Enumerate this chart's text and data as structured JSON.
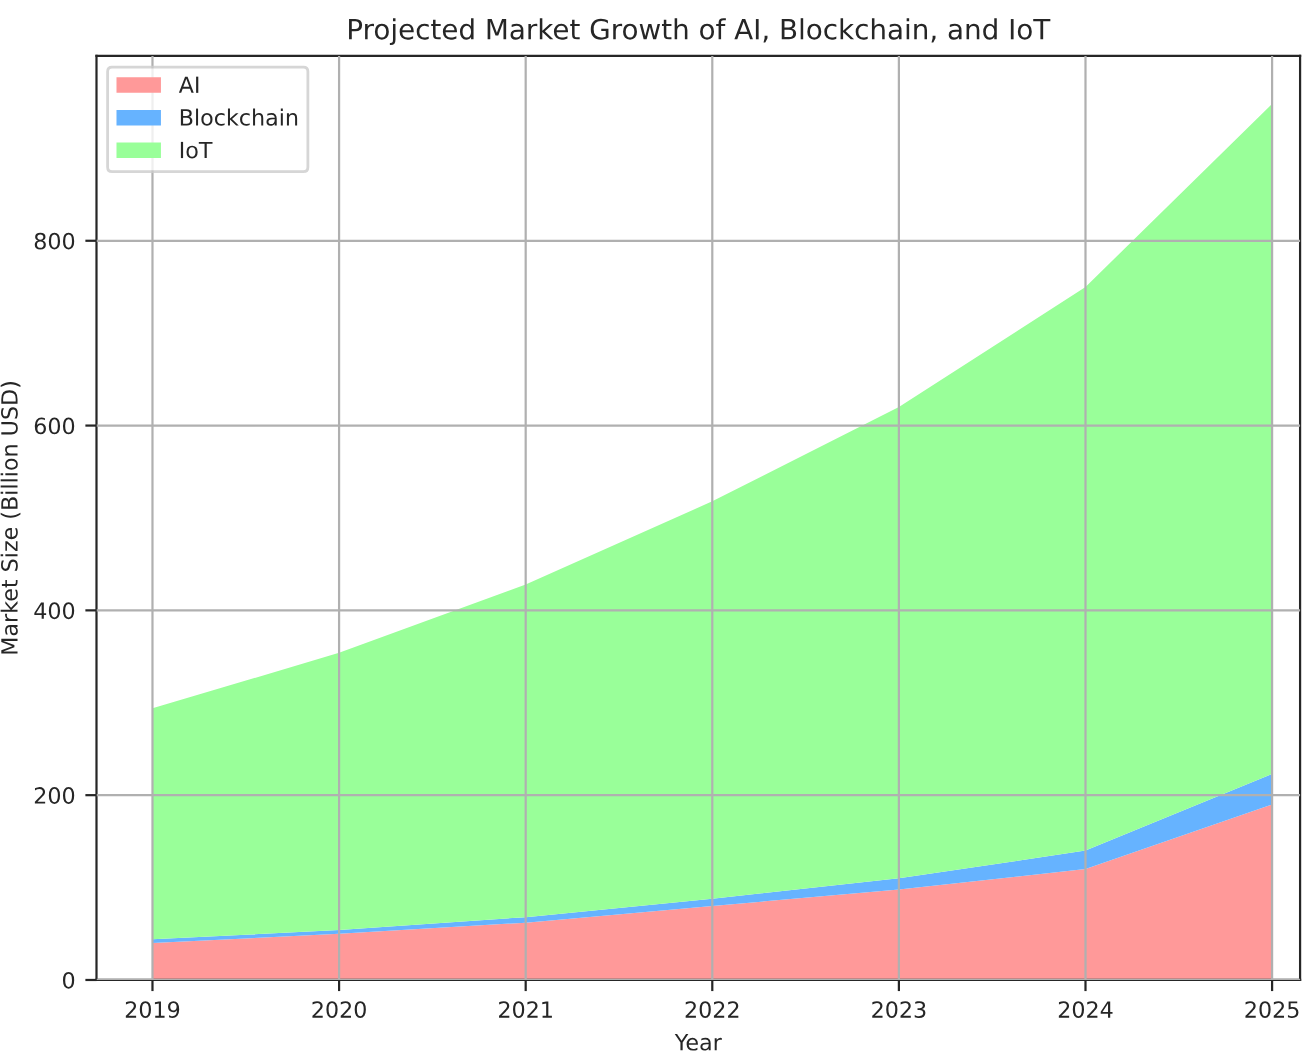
{
  "chart_data": {
    "type": "area",
    "stacked": true,
    "title": "Projected Market Growth of AI, Blockchain, and IoT",
    "xlabel": "Year",
    "ylabel": "Market Size (Billion USD)",
    "x": [
      2019,
      2020,
      2021,
      2022,
      2023,
      2024,
      2025
    ],
    "series": [
      {
        "name": "AI",
        "color": "#ff9999",
        "values": [
          40,
          50,
          62,
          80,
          98,
          120,
          190
        ]
      },
      {
        "name": "Blockchain",
        "color": "#66b3ff",
        "values": [
          4,
          4,
          6,
          8,
          12,
          20,
          33
        ]
      },
      {
        "name": "IoT",
        "color": "#99ff99",
        "values": [
          250,
          300,
          360,
          430,
          510,
          610,
          725
        ]
      }
    ],
    "xlim": [
      2018.7,
      2025.15
    ],
    "xticks": [
      2019,
      2020,
      2021,
      2022,
      2023,
      2024,
      2025
    ],
    "ylim": [
      0,
      1000
    ],
    "yticks": [
      0,
      200,
      400,
      600,
      800
    ],
    "grid": true,
    "legend": "top left"
  }
}
